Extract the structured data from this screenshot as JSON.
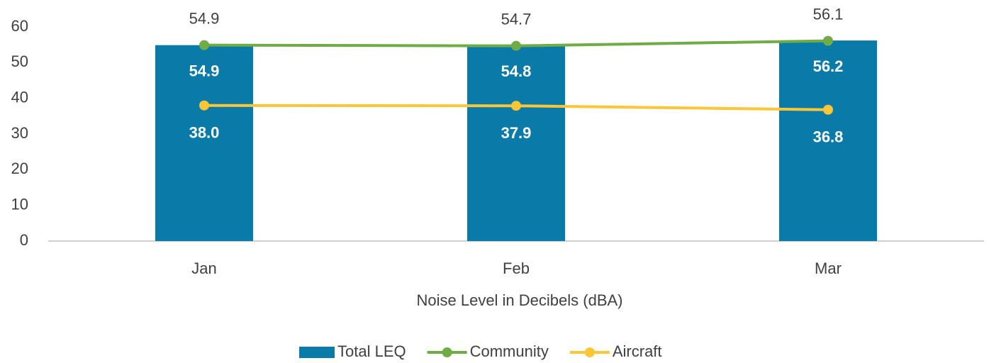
{
  "chart_data": {
    "type": "combo",
    "x_label": "Noise Level in Decibels (dBA)",
    "categories": [
      "Jan",
      "Feb",
      "Mar"
    ],
    "series": [
      {
        "name": "Total LEQ",
        "type": "bar",
        "color": "#0a7aa8",
        "values": [
          54.9,
          54.8,
          56.2
        ],
        "value_labels": [
          "54.9",
          "54.8",
          "56.2"
        ]
      },
      {
        "name": "Community",
        "type": "line",
        "color": "#6fac46",
        "values": [
          54.9,
          54.7,
          56.1
        ],
        "value_labels": [
          "54.9",
          "54.7",
          "56.1"
        ]
      },
      {
        "name": "Aircraft",
        "type": "line",
        "color": "#fcc636",
        "values": [
          38.0,
          37.9,
          36.8
        ],
        "value_labels": [
          "38.0",
          "37.9",
          "36.8"
        ]
      }
    ],
    "ylim": [
      0,
      60
    ],
    "yticks": [
      0,
      10,
      20,
      30,
      40,
      50,
      60
    ],
    "grid": false,
    "legend": "bottom"
  }
}
